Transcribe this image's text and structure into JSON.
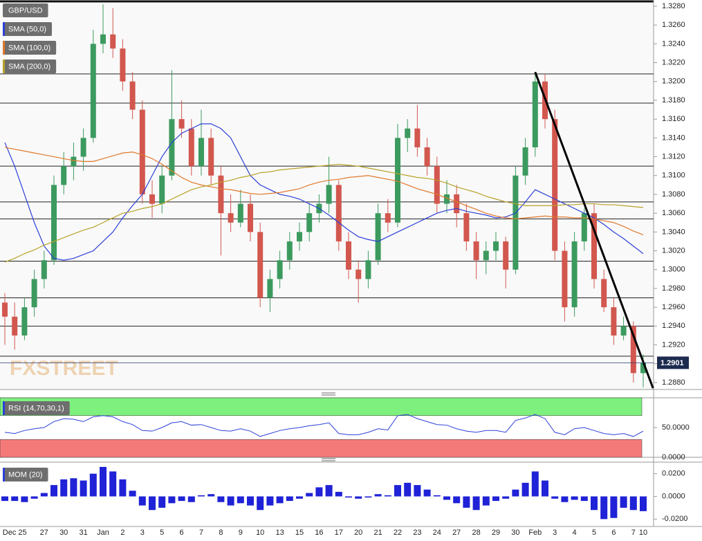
{
  "chart_data": [
    {
      "type": "candlestick",
      "symbol": "GBP/USD",
      "watermark": "FXSTREET",
      "categories": [
        null,
        "Dec 25",
        null,
        null,
        "27",
        null,
        "30",
        null,
        "31",
        null,
        "Jan",
        null,
        "2",
        null,
        "3",
        null,
        "5",
        null,
        "6",
        null,
        "7",
        null,
        "8",
        null,
        "9",
        null,
        "10",
        null,
        "13",
        null,
        "15",
        null,
        "16",
        null,
        "17",
        null,
        "20",
        null,
        "21",
        null,
        "22",
        null,
        "23",
        null,
        "24",
        null,
        "27",
        null,
        "28",
        null,
        "29",
        null,
        "30",
        null,
        "Feb",
        null,
        "3",
        null,
        "4",
        null,
        "5",
        null,
        "6",
        null,
        "7",
        "10"
      ],
      "open": [
        1.2965,
        1.295,
        1.293,
        1.296,
        1.299,
        1.301,
        1.309,
        1.311,
        1.312,
        1.314,
        1.324,
        1.325,
        1.3235,
        1.32,
        1.317,
        1.308,
        1.307,
        1.31,
        1.316,
        1.315,
        1.311,
        1.314,
        1.31,
        1.306,
        1.305,
        1.307,
        1.304,
        1.297,
        1.299,
        1.301,
        1.303,
        1.304,
        1.306,
        1.307,
        1.309,
        1.303,
        1.3,
        1.299,
        1.301,
        1.306,
        1.305,
        1.314,
        1.315,
        1.313,
        1.311,
        1.307,
        1.308,
        1.306,
        1.303,
        1.301,
        1.302,
        1.303,
        1.3,
        1.31,
        1.313,
        1.32,
        1.316,
        1.302,
        1.296,
        1.303,
        1.306,
        1.299,
        1.296,
        1.293,
        1.294,
        1.289
      ],
      "high": [
        1.2975,
        1.2965,
        1.297,
        1.3,
        1.302,
        1.31,
        1.3125,
        1.3135,
        1.315,
        1.3255,
        1.3282,
        1.3278,
        1.3245,
        1.321,
        1.318,
        1.3095,
        1.311,
        1.3212,
        1.318,
        1.316,
        1.317,
        1.315,
        1.311,
        1.308,
        1.3085,
        1.308,
        1.305,
        1.3,
        1.302,
        1.304,
        1.305,
        1.307,
        1.308,
        1.312,
        1.3095,
        1.304,
        1.301,
        1.302,
        1.307,
        1.3075,
        1.3155,
        1.316,
        1.3175,
        1.314,
        1.312,
        1.3095,
        1.309,
        1.307,
        1.304,
        1.303,
        1.304,
        1.3035,
        1.311,
        1.314,
        1.321,
        1.3208,
        1.317,
        1.303,
        1.304,
        1.3065,
        1.307,
        1.3,
        1.297,
        1.295,
        1.2945,
        1.291
      ],
      "low": [
        1.292,
        1.2915,
        1.2925,
        1.295,
        1.298,
        1.3005,
        1.308,
        1.3095,
        1.3105,
        1.3135,
        1.323,
        1.3225,
        1.319,
        1.316,
        1.307,
        1.3055,
        1.306,
        1.3095,
        1.314,
        1.31,
        1.31,
        1.309,
        1.3015,
        1.304,
        1.3045,
        1.303,
        1.296,
        1.2955,
        1.298,
        1.3,
        1.302,
        1.303,
        1.305,
        1.306,
        1.302,
        1.299,
        1.2965,
        1.298,
        1.3005,
        1.304,
        1.3045,
        1.3125,
        1.312,
        1.31,
        1.306,
        1.306,
        1.3045,
        1.302,
        1.299,
        1.2995,
        1.301,
        1.298,
        1.2995,
        1.309,
        1.312,
        1.315,
        1.301,
        1.2945,
        1.295,
        1.302,
        1.298,
        1.2955,
        1.292,
        1.2925,
        1.288,
        1.2875
      ],
      "close": [
        1.295,
        1.293,
        1.296,
        1.299,
        1.301,
        1.309,
        1.311,
        1.312,
        1.314,
        1.324,
        1.325,
        1.3235,
        1.32,
        1.317,
        1.308,
        1.307,
        1.31,
        1.316,
        1.315,
        1.311,
        1.314,
        1.31,
        1.306,
        1.305,
        1.307,
        1.304,
        1.297,
        1.299,
        1.301,
        1.303,
        1.304,
        1.306,
        1.307,
        1.309,
        1.303,
        1.3,
        1.299,
        1.301,
        1.306,
        1.305,
        1.314,
        1.315,
        1.313,
        1.311,
        1.307,
        1.308,
        1.306,
        1.303,
        1.301,
        1.302,
        1.303,
        1.3,
        1.31,
        1.313,
        1.32,
        1.316,
        1.302,
        1.296,
        1.303,
        1.306,
        1.299,
        1.296,
        1.293,
        1.294,
        1.289,
        1.2901
      ],
      "up_color": "#3c9a5f",
      "down_color": "#d2574e",
      "series": [
        {
          "name": "SMA (50,0)",
          "color": "#2b3fd8",
          "values": [
            1.3135,
            1.311,
            1.308,
            1.305,
            1.3025,
            1.3012,
            1.301,
            1.3012,
            1.3016,
            1.302,
            1.303,
            1.304,
            1.3055,
            1.3068,
            1.308,
            1.31,
            1.312,
            1.3135,
            1.3145,
            1.315,
            1.3155,
            1.3155,
            1.315,
            1.314,
            1.312,
            1.31,
            1.309,
            1.3085,
            1.308,
            1.3078,
            1.3075,
            1.307,
            1.3065,
            1.3058,
            1.305,
            1.3042,
            1.3035,
            1.3032,
            1.303,
            1.3035,
            1.304,
            1.3045,
            1.305,
            1.3055,
            1.306,
            1.3063,
            1.3065,
            1.3062,
            1.306,
            1.3058,
            1.3055,
            1.3056,
            1.306,
            1.3072,
            1.3085,
            1.308,
            1.3075,
            1.307,
            1.3065,
            1.306,
            1.3055,
            1.3048,
            1.304,
            1.3033,
            1.3025,
            1.3017
          ]
        },
        {
          "name": "SMA (100,0)",
          "color": "#e0782a",
          "values": [
            1.313,
            1.3128,
            1.3126,
            1.3124,
            1.3122,
            1.312,
            1.3118,
            1.3116,
            1.3115,
            1.3115,
            1.3118,
            1.3121,
            1.3124,
            1.3125,
            1.3122,
            1.3118,
            1.3112,
            1.3105,
            1.3098,
            1.3093,
            1.309,
            1.3088,
            1.3086,
            1.3085,
            1.3083,
            1.3081,
            1.308,
            1.3081,
            1.3082,
            1.3084,
            1.3086,
            1.309,
            1.3093,
            1.3095,
            1.3096,
            1.3098,
            1.3099,
            1.31,
            1.3098,
            1.3096,
            1.3094,
            1.309,
            1.3086,
            1.3083,
            1.308,
            1.3076,
            1.3072,
            1.3068,
            1.3064,
            1.306,
            1.3057,
            1.3055,
            1.3054,
            1.3055,
            1.3056,
            1.3057,
            1.3056,
            1.3056,
            1.3055,
            1.3055,
            1.3054,
            1.3052,
            1.305,
            1.3046,
            1.3041,
            1.3037
          ]
        },
        {
          "name": "SMA (200,0)",
          "color": "#b8a226",
          "values": [
            1.3008,
            1.3012,
            1.3017,
            1.3021,
            1.3026,
            1.303,
            1.3034,
            1.3038,
            1.3042,
            1.3045,
            1.305,
            1.3055,
            1.306,
            1.3062,
            1.3065,
            1.3067,
            1.307,
            1.3075,
            1.308,
            1.3085,
            1.3088,
            1.309,
            1.3093,
            1.3095,
            1.3098,
            1.31,
            1.3103,
            1.3104,
            1.3106,
            1.3107,
            1.3108,
            1.3109,
            1.311,
            1.3111,
            1.3112,
            1.3111,
            1.311,
            1.3108,
            1.3106,
            1.3104,
            1.3102,
            1.31,
            1.3098,
            1.3097,
            1.3095,
            1.3092,
            1.3088,
            1.3085,
            1.3082,
            1.3078,
            1.3075,
            1.3072,
            1.307,
            1.3068,
            1.3068,
            1.3068,
            1.3068,
            1.3069,
            1.3069,
            1.307,
            1.307,
            1.3069,
            1.3069,
            1.3068,
            1.3067,
            1.3066
          ]
        }
      ],
      "hlines": [
        1.3208,
        1.3177,
        1.311,
        1.3072,
        1.3054,
        1.3009,
        1.297,
        1.294,
        1.2908
      ],
      "trendline": {
        "x": [
          54,
          66
        ],
        "y": [
          1.321,
          1.2874
        ]
      },
      "ylim": [
        1.28726,
        1.32866
      ],
      "yticks": [
        {
          "value": 1.288,
          "label": "1.2880"
        },
        {
          "value": 1.29,
          "label": "1.2900"
        },
        {
          "value": 1.292,
          "label": "1.2920"
        },
        {
          "value": 1.294,
          "label": "1.2940"
        },
        {
          "value": 1.296,
          "label": "1.2960"
        },
        {
          "value": 1.298,
          "label": "1.2980"
        },
        {
          "value": 1.3,
          "label": "1.3000"
        },
        {
          "value": 1.302,
          "label": "1.3020"
        },
        {
          "value": 1.304,
          "label": "1.3040"
        },
        {
          "value": 1.306,
          "label": "1.3060"
        },
        {
          "value": 1.308,
          "label": "1.3080"
        },
        {
          "value": 1.31,
          "label": "1.3100"
        },
        {
          "value": 1.312,
          "label": "1.3120"
        },
        {
          "value": 1.314,
          "label": "1.3140"
        },
        {
          "value": 1.316,
          "label": "1.3160"
        },
        {
          "value": 1.318,
          "label": "1.3180"
        },
        {
          "value": 1.32,
          "label": "1.3200"
        },
        {
          "value": 1.322,
          "label": "1.3220"
        },
        {
          "value": 1.324,
          "label": "1.3240"
        },
        {
          "value": 1.326,
          "label": "1.3260"
        },
        {
          "value": 1.328,
          "label": "1.3280"
        }
      ]
    },
    {
      "type": "line",
      "title": "RSI (14,70,30,1)",
      "color": "#2b3fd8",
      "values": [
        42,
        40,
        45,
        48,
        50,
        60,
        65,
        64,
        60,
        68,
        70,
        68,
        60,
        55,
        45,
        44,
        50,
        58,
        60,
        54,
        55,
        50,
        45,
        44,
        48,
        44,
        35,
        40,
        45,
        48,
        50,
        53,
        55,
        58,
        40,
        38,
        38,
        42,
        48,
        46,
        70,
        72,
        65,
        60,
        55,
        54,
        48,
        44,
        42,
        45,
        45,
        42,
        62,
        66,
        72,
        65,
        42,
        38,
        48,
        50,
        45,
        40,
        38,
        40,
        35,
        44
      ],
      "bands": [
        {
          "from": 70,
          "to": 100,
          "color": "#7ef07e"
        },
        {
          "from": 0,
          "to": 30,
          "color": "#f47a7a"
        }
      ],
      "ylim": [
        0,
        100
      ],
      "yticks": [
        {
          "value": 50,
          "label": "50.0000"
        },
        {
          "value": 0,
          "label": "0.0000"
        }
      ]
    },
    {
      "type": "bar",
      "title": "MOM (20)",
      "color": "#1f22d6",
      "values": [
        -0.004,
        -0.004,
        -0.005,
        -0.002,
        0.003,
        0.01,
        0.015,
        0.016,
        0.014,
        0.02,
        0.026,
        0.022,
        0.015,
        0.005,
        -0.008,
        -0.012,
        -0.01,
        -0.006,
        -0.004,
        -0.005,
        0.001,
        0.002,
        -0.005,
        -0.008,
        -0.006,
        -0.008,
        -0.012,
        -0.008,
        -0.006,
        -0.004,
        -0.002,
        0.003,
        0.008,
        0.01,
        0.004,
        -0.001,
        -0.002,
        -0.001,
        0.002,
        0.001,
        0.01,
        0.012,
        0.01,
        0.006,
        0.001,
        -0.003,
        -0.006,
        -0.01,
        -0.012,
        -0.008,
        -0.004,
        -0.002,
        0.006,
        0.012,
        0.022,
        0.014,
        -0.002,
        -0.005,
        -0.003,
        -0.004,
        -0.012,
        -0.02,
        -0.019,
        -0.01,
        -0.012,
        -0.013
      ],
      "ylim": [
        -0.0265,
        0.0302
      ],
      "yticks": [
        {
          "value": 0.02,
          "label": "0.0200"
        },
        {
          "value": 0,
          "label": "0.0000"
        },
        {
          "value": -0.02,
          "label": "-0.0200"
        }
      ]
    }
  ]
}
